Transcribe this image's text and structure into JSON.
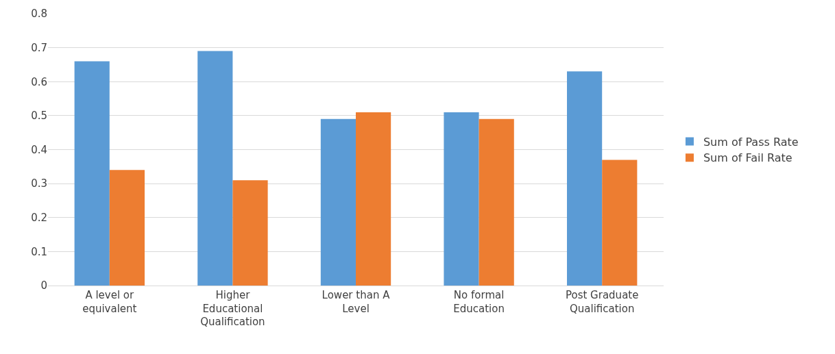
{
  "chart_data": {
    "type": "bar",
    "categories": [
      "A level or equivalent",
      "Higher Educational Qualification",
      "Lower than A Level",
      "No formal Education",
      "Post Graduate Qualification"
    ],
    "series": [
      {
        "name": "Sum of Pass Rate",
        "color": "#5b9bd5",
        "values": [
          0.66,
          0.69,
          0.49,
          0.51,
          0.63
        ]
      },
      {
        "name": "Sum of Fail Rate",
        "color": "#ed7d31",
        "values": [
          0.34,
          0.31,
          0.51,
          0.49,
          0.37
        ]
      }
    ],
    "ylim": [
      0,
      0.8
    ],
    "yticks": [
      0,
      0.1,
      0.2,
      0.3,
      0.4,
      0.5,
      0.6,
      0.7,
      0.8
    ],
    "grid": "y",
    "legend": "right"
  }
}
